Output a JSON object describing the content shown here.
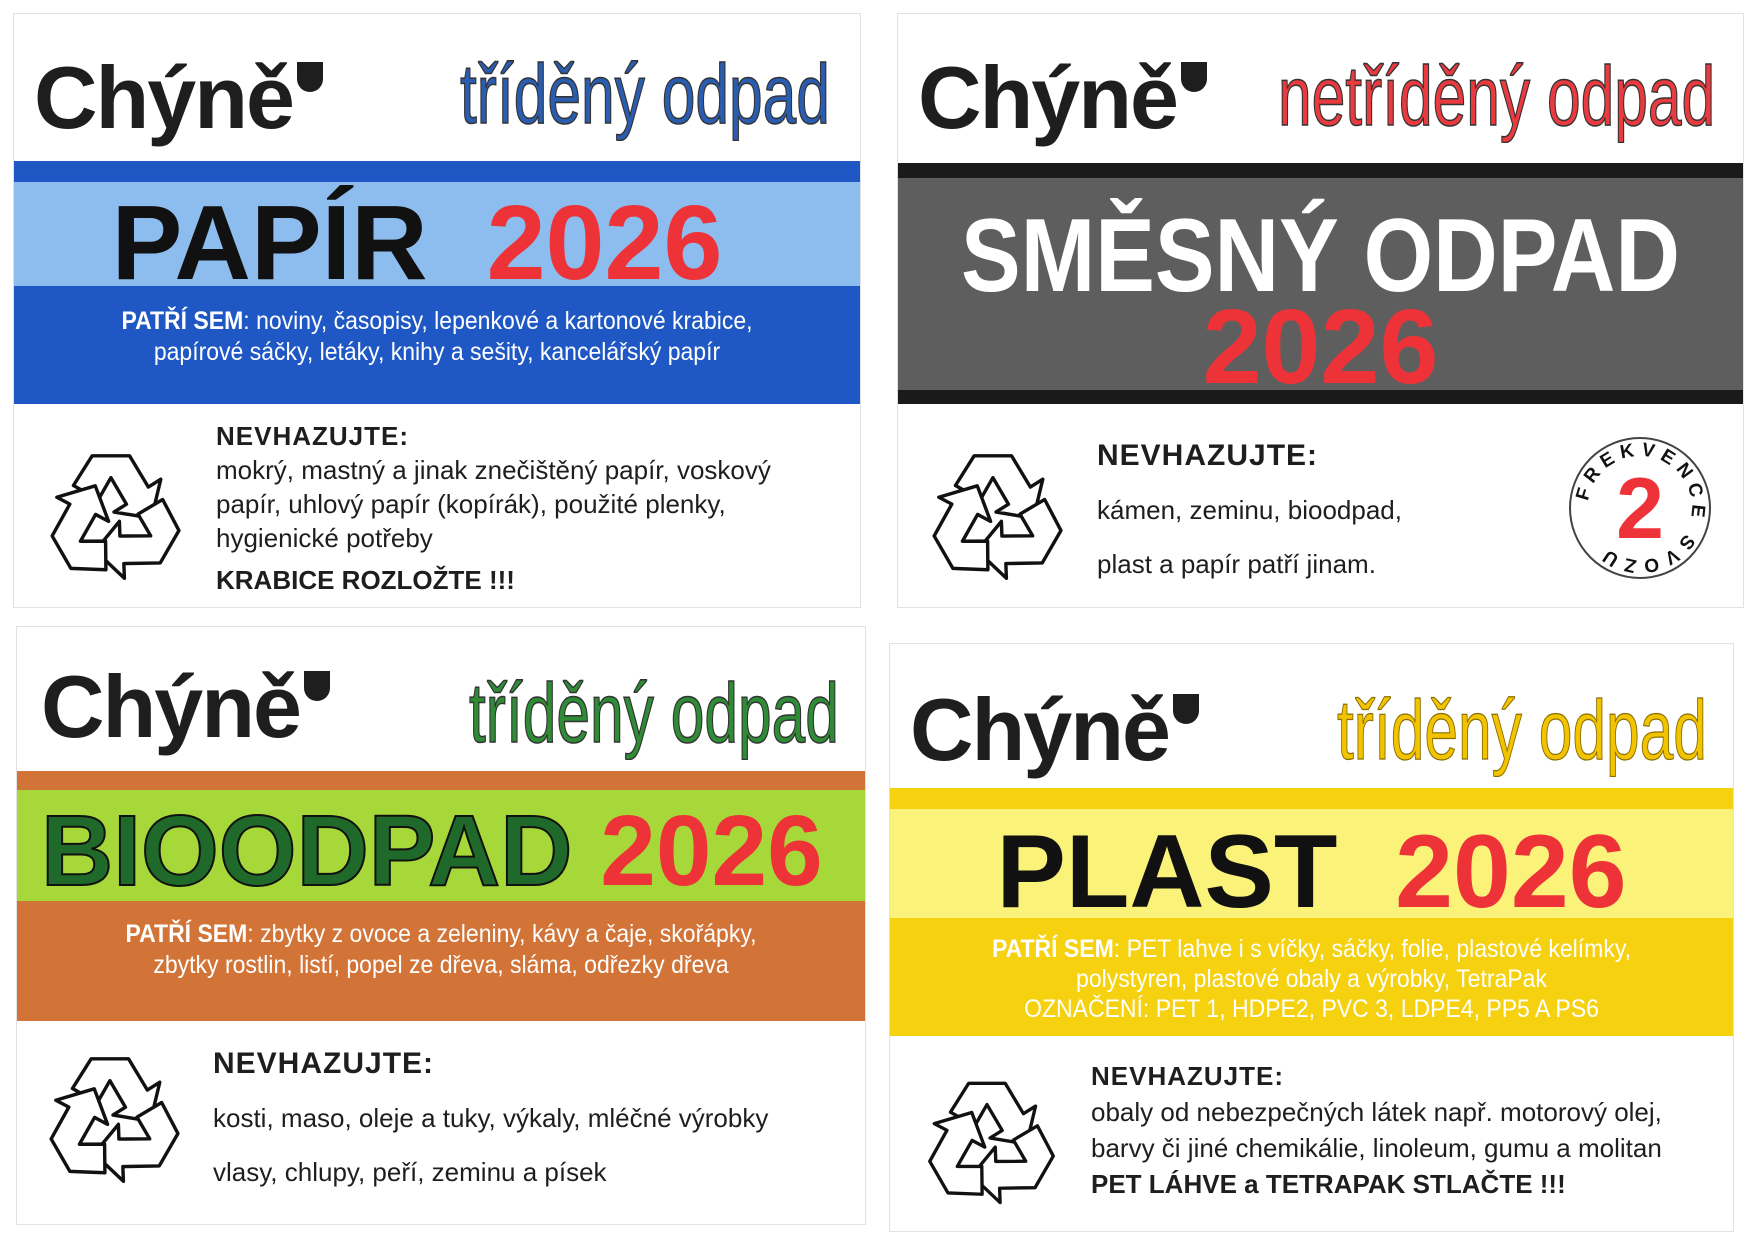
{
  "logo": "Chýně",
  "panels": {
    "papir": {
      "category": "tříděný odpad",
      "title": "PAPÍR",
      "year": "2026",
      "belongs_label": "PATŘÍ SEM",
      "belongs_line1": ": noviny, časopisy, lepenkové a kartonové krabice,",
      "belongs_line2": "papírové sáčky, letáky, knihy a sešity, kancelářský papír",
      "dont_label": "NEVHAZUJTE:",
      "dont_lines": [
        "mokrý, mastný a jinak znečištěný papír, voskový",
        "papír, uhlový papír (kopírák), použité plenky,",
        "hygienické potřeby"
      ],
      "note": "KRABICE ROZLOŽTE !!!",
      "colors": {
        "category": "#2a5db0",
        "band_dark": "#1f58c4",
        "band_light": "#8dbcef"
      }
    },
    "smesny": {
      "category": "netříděný odpad",
      "title": "SMĚSNÝ ODPAD",
      "year": "2026",
      "dont_label": "NEVHAZUJTE:",
      "dont_lines": [
        "kámen, zeminu, bioodpad,",
        "plast a papír patří jinam."
      ],
      "badge": {
        "ring_text": "FREKVENCE SVOZU",
        "number": "2"
      },
      "colors": {
        "category": "#e83a3f",
        "band_dark": "#1a1a1a",
        "band_grey": "#5e5e5e"
      }
    },
    "bio": {
      "category": "tříděný odpad",
      "title": "BIOODPAD",
      "year": "2026",
      "belongs_label": "PATŘÍ SEM",
      "belongs_line1": ": zbytky z ovoce a zeleniny, kávy a čaje, skořápky,",
      "belongs_line2": "zbytky rostlin, listí, popel ze dřeva, sláma, odřezky dřeva",
      "dont_label": "NEVHAZUJTE:",
      "dont_lines": [
        "kosti, maso, oleje a tuky, výkaly, mléčné výrobky",
        "vlasy, chlupy, peří, zeminu a písek"
      ],
      "colors": {
        "category": "#2e8b36",
        "band_dark": "#d27437",
        "band_light": "#a7d83a",
        "title": "#1f6a2a"
      }
    },
    "plast": {
      "category": "tříděný odpad",
      "title": "PLAST",
      "year": "2026",
      "belongs_label": "PATŘÍ SEM",
      "belongs_line1": ": PET lahve i s víčky, sáčky, folie, plastové kelímky,",
      "belongs_line2": "polystyren, plastové obaly a výrobky, TetraPak",
      "belongs_line3": "OZNAČENÍ: PET 1, HDPE2, PVC 3, LDPE4, PP5 A PS6",
      "dont_label": "NEVHAZUJTE:",
      "dont_lines": [
        "obaly od nebezpečných látek např. motorový olej,",
        "barvy či jiné chemikálie, linoleum, gumu a molitan"
      ],
      "note": "PET LÁHVE a TETRAPAK STLAČTE !!!",
      "colors": {
        "category": "#f2c400",
        "band_dark": "#f6d10f",
        "band_light": "#fbf27a"
      }
    }
  },
  "icons": {
    "recycle": "recycle-icon",
    "shield": "shield-icon"
  }
}
